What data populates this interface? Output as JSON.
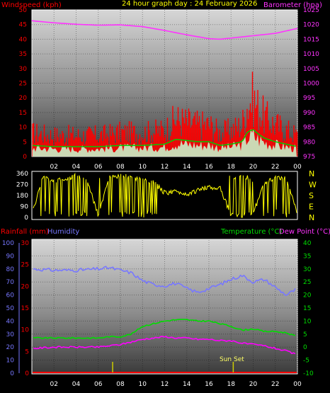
{
  "header": {
    "wind_label": "Windspeed (kph)",
    "title": "24 hour graph day : 24 February 2026",
    "baro_label": "Barometer (hpa)",
    "rain_label": "Rainfall (mm)",
    "hum_label": "Humidity",
    "temp_label": "Temperature (°C)",
    "dew_label": "Dew Point (°C)"
  },
  "colors": {
    "wind": "#ff0000",
    "gust_fill": "#c8f0c8",
    "avg_wind": "#00cc00",
    "baro": "#ff33ff",
    "winddir": "#ffff00",
    "humidity": "#7777ff",
    "temperature": "#00dd00",
    "dewpoint": "#ff00ff",
    "rain": "#ff0000",
    "sun": "#cccc00"
  },
  "axes": {
    "time_ticks": [
      "02",
      "04",
      "06",
      "08",
      "10",
      "12",
      "14",
      "16",
      "18",
      "20",
      "22",
      "00"
    ],
    "time_hours": [
      2,
      4,
      6,
      8,
      10,
      12,
      14,
      16,
      18,
      20,
      22,
      24
    ],
    "wind_ticks": [
      "0",
      "5",
      "10",
      "15",
      "20",
      "25",
      "30",
      "35",
      "40",
      "45",
      "50"
    ],
    "baro_ticks": [
      "975",
      "980",
      "985",
      "990",
      "995",
      "1000",
      "1005",
      "1010",
      "1015",
      "1020",
      "1025"
    ],
    "dir_ticks": [
      "0",
      "90",
      "180",
      "270",
      "360"
    ],
    "compass": [
      "N",
      "W",
      "S",
      "E",
      "N"
    ],
    "humidity_ticks": [
      "0",
      "10",
      "20",
      "30",
      "40",
      "50",
      "60",
      "70",
      "80",
      "90",
      "100"
    ],
    "rain_ticks": [
      "0",
      "5",
      "10",
      "15",
      "20",
      "25",
      "30"
    ],
    "temp_ticks": [
      "-10",
      "-5",
      "0",
      "5",
      "10",
      "15",
      "20",
      "25",
      "30",
      "35",
      "40"
    ]
  },
  "annotation": {
    "sunset": "Sun Set"
  },
  "chart_data": [
    {
      "type": "line",
      "name": "wind-baro",
      "x_unit": "hour",
      "ylim_wind": [
        0,
        50
      ],
      "ylim_baro": [
        975,
        1025
      ],
      "series": [
        {
          "name": "Windspeed (kph)",
          "x": [
            0,
            2,
            4,
            6,
            8,
            10,
            12,
            13,
            14,
            15,
            16,
            17,
            18,
            19,
            19.5,
            20,
            20.5,
            21,
            22,
            23,
            24
          ],
          "values": [
            9,
            8,
            8,
            8,
            9,
            9,
            10,
            14,
            13,
            12,
            12,
            9,
            10,
            12,
            20,
            22,
            18,
            15,
            12,
            10,
            8
          ]
        },
        {
          "name": "Barometer (hpa)",
          "x": [
            0,
            2,
            4,
            6,
            8,
            10,
            12,
            14,
            16,
            17,
            18,
            20,
            22,
            24
          ],
          "values": [
            1021.3,
            1020.6,
            1020.1,
            1019.8,
            1019.9,
            1019.3,
            1018,
            1016.5,
            1015.2,
            1015,
            1015.4,
            1016.2,
            1017,
            1018.7
          ]
        }
      ]
    },
    {
      "type": "scatter",
      "name": "wind-direction",
      "x_unit": "hour",
      "ylim": [
        0,
        360
      ],
      "x": [
        0,
        1,
        2,
        3,
        4,
        5,
        6,
        7,
        8,
        9,
        10,
        11,
        12,
        13,
        14,
        15,
        16,
        17,
        18,
        19,
        20,
        21,
        22,
        23,
        24
      ],
      "values": [
        20,
        330,
        300,
        320,
        340,
        300,
        20,
        330,
        340,
        330,
        300,
        290,
        200,
        210,
        190,
        220,
        250,
        240,
        20,
        15,
        30,
        280,
        320,
        330,
        20
      ]
    },
    {
      "type": "line",
      "name": "temp-hum-rain",
      "x_unit": "hour",
      "ylim_humidity": [
        0,
        100
      ],
      "ylim_rain": [
        0,
        30
      ],
      "ylim_temp": [
        -10,
        40
      ],
      "series": [
        {
          "name": "Humidity",
          "x": [
            0,
            2,
            4,
            6,
            7,
            8,
            9,
            10,
            11,
            12,
            13,
            14,
            15,
            16,
            17,
            18,
            19,
            20,
            21,
            22,
            23,
            24
          ],
          "values": [
            80,
            79,
            79,
            80,
            81,
            79,
            77,
            71,
            68,
            67,
            69,
            65,
            62,
            65,
            68,
            72,
            75,
            70,
            72,
            66,
            60,
            65
          ]
        },
        {
          "name": "Temperature (°C)",
          "x": [
            0,
            2,
            4,
            6,
            7,
            8,
            9,
            10,
            11,
            12,
            13,
            14,
            15,
            16,
            17,
            18,
            19,
            20,
            21,
            22,
            23,
            24
          ],
          "values": [
            3.5,
            3.5,
            3.5,
            3.5,
            4,
            4,
            5,
            8,
            9,
            10,
            10.5,
            10.5,
            10,
            10,
            9,
            8,
            6.5,
            7,
            6,
            6,
            5.5,
            4
          ]
        },
        {
          "name": "Dew Point (°C)",
          "x": [
            0,
            2,
            4,
            6,
            7,
            8,
            9,
            10,
            11,
            12,
            13,
            14,
            15,
            16,
            17,
            18,
            19,
            20,
            21,
            22,
            23,
            24
          ],
          "values": [
            -0.5,
            0,
            0,
            0,
            0.5,
            1,
            2,
            3,
            3.5,
            4,
            3.5,
            3.5,
            3,
            3,
            2.5,
            2.5,
            1.5,
            1,
            0.5,
            -0.5,
            -1.5,
            -3
          ]
        },
        {
          "name": "Rainfall (mm)",
          "x": [
            0,
            24
          ],
          "values": [
            0,
            0
          ]
        }
      ]
    }
  ]
}
